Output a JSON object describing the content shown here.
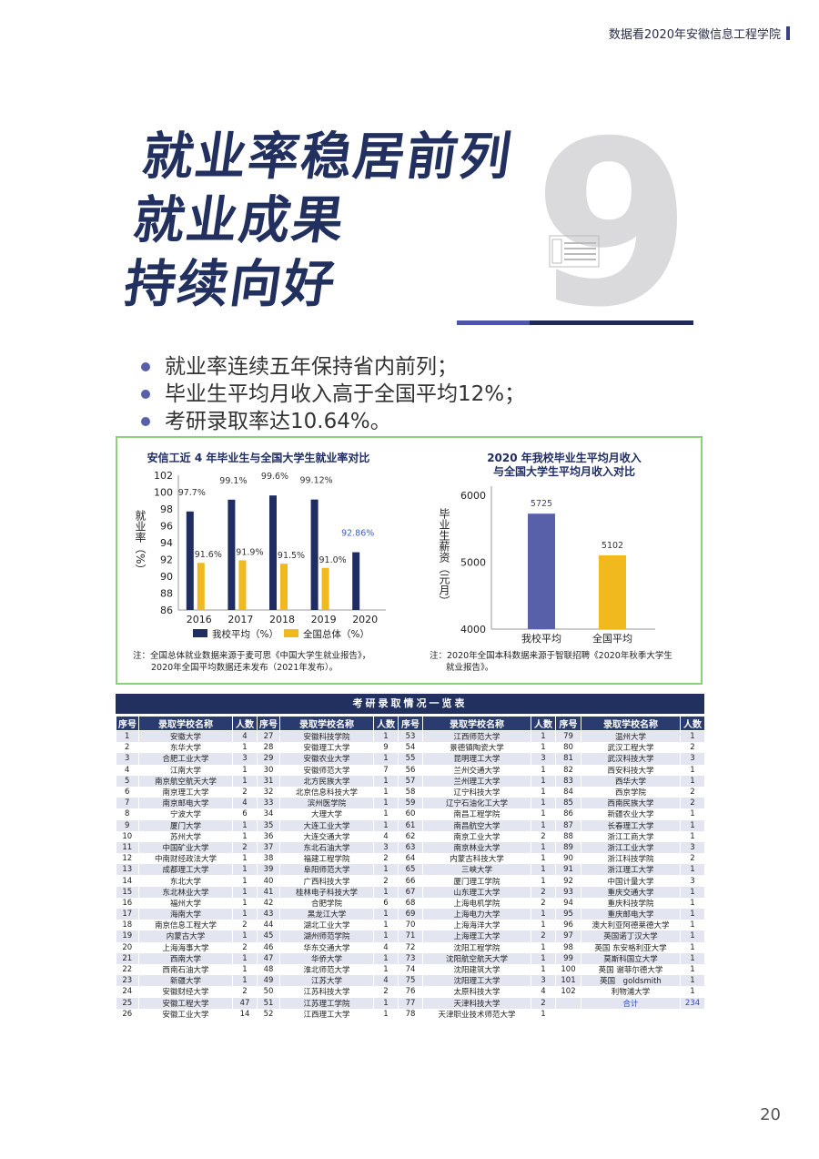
{
  "header": {
    "text": "数据看2020年安徽信息工程学院"
  },
  "big_number": "9",
  "title_lines": [
    "就业率稳居前列",
    "就业成果",
    "持续向好"
  ],
  "bullets": [
    "就业率连续五年保持省内前列；",
    "毕业生平均月收入高于全国平均12%；",
    "考研录取率达10.64%。"
  ],
  "chart_data": [
    {
      "type": "bar",
      "title": "安信工近 4 年毕业生与全国大学生就业率对比",
      "ylabel": "就业率（%）",
      "ylim": [
        86,
        102
      ],
      "yticks": [
        "102",
        "100",
        "98",
        "96",
        "94",
        "92",
        "90",
        "88",
        "86"
      ],
      "categories": [
        "2016",
        "2017",
        "2018",
        "2019",
        "2020"
      ],
      "series": [
        {
          "name": "我校平均（%）",
          "color": "#1f2d63",
          "values": [
            97.7,
            99.1,
            99.6,
            99.12,
            92.86
          ],
          "labels": [
            "97.7%",
            "99.1%",
            "99.6%",
            "99.12%",
            "92.86%"
          ]
        },
        {
          "name": "全国总体（%）",
          "color": "#f0b91d",
          "values": [
            91.6,
            91.9,
            91.5,
            91.0,
            null
          ],
          "labels": [
            "91.6%",
            "91.9%",
            "91.5%",
            "91.0%",
            ""
          ]
        }
      ],
      "note": [
        "注：全国总体就业数据来源于麦可思《中国大学生就业报告》，",
        "2020年全国平均数据还未发布（2021年发布）。"
      ]
    },
    {
      "type": "bar",
      "title": [
        "2020 年我校毕业生平均月收入",
        "与全国大学生平均月收入对比"
      ],
      "ylabel": "毕业生薪资（元月）",
      "ylim": [
        4000,
        6000
      ],
      "yticks": [
        "6000",
        "5000",
        "4000"
      ],
      "categories": [
        "我校平均",
        "全国平均"
      ],
      "values": [
        5725,
        5102
      ],
      "labels": [
        "5725",
        "5102"
      ],
      "colors": [
        "#5760a8",
        "#f0b91d"
      ],
      "note": [
        "注：2020年全国本科数据来源于智联招聘《2020年秋季大学生",
        "就业报告》。"
      ]
    }
  ],
  "table": {
    "title": "考研录取情况一览表",
    "headers": [
      "序号",
      "录取学校名称",
      "人数",
      "序号",
      "录取学校名称",
      "人数",
      "序号",
      "录取学校名称",
      "人数",
      "序号",
      "录取学校名称",
      "人数"
    ],
    "rows": [
      [
        "1",
        "安徽大学",
        "4",
        "27",
        "安徽科技学院",
        "1",
        "53",
        "江西师范大学",
        "1",
        "79",
        "温州大学",
        "1"
      ],
      [
        "2",
        "东华大学",
        "1",
        "28",
        "安徽理工大学",
        "9",
        "54",
        "景德镇陶瓷大学",
        "1",
        "80",
        "武汉工程大学",
        "2"
      ],
      [
        "3",
        "合肥工业大学",
        "3",
        "29",
        "安徽农业大学",
        "1",
        "55",
        "昆明理工大学",
        "3",
        "81",
        "武汉科技大学",
        "3"
      ],
      [
        "4",
        "江南大学",
        "1",
        "30",
        "安徽师范大学",
        "7",
        "56",
        "兰州交通大学",
        "1",
        "82",
        "西安科技大学",
        "1"
      ],
      [
        "5",
        "南京航空航天大学",
        "1",
        "31",
        "北方民族大学",
        "1",
        "57",
        "兰州理工大学",
        "1",
        "83",
        "西华大学",
        "1"
      ],
      [
        "6",
        "南京理工大学",
        "2",
        "32",
        "北京信息科技大学",
        "1",
        "58",
        "辽宁科技大学",
        "1",
        "84",
        "西京学院",
        "2"
      ],
      [
        "7",
        "南京邮电大学",
        "4",
        "33",
        "滨州医学院",
        "1",
        "59",
        "辽宁石油化工大学",
        "1",
        "85",
        "西南民族大学",
        "2"
      ],
      [
        "8",
        "宁波大学",
        "6",
        "34",
        "大理大学",
        "1",
        "60",
        "南昌工程学院",
        "1",
        "86",
        "新疆农业大学",
        "1"
      ],
      [
        "9",
        "厦门大学",
        "1",
        "35",
        "大连工业大学",
        "1",
        "61",
        "南昌航空大学",
        "1",
        "87",
        "长春理工大学",
        "1"
      ],
      [
        "10",
        "苏州大学",
        "1",
        "36",
        "大连交通大学",
        "4",
        "62",
        "南京工业大学",
        "2",
        "88",
        "浙江工商大学",
        "1"
      ],
      [
        "11",
        "中国矿业大学",
        "2",
        "37",
        "东北石油大学",
        "3",
        "63",
        "南京林业大学",
        "1",
        "89",
        "浙江工业大学",
        "3"
      ],
      [
        "12",
        "中南财经政法大学",
        "1",
        "38",
        "福建工程学院",
        "2",
        "64",
        "内蒙古科技大学",
        "1",
        "90",
        "浙江科技学院",
        "2"
      ],
      [
        "13",
        "成都理工大学",
        "1",
        "39",
        "阜阳师范大学",
        "1",
        "65",
        "三峡大学",
        "1",
        "91",
        "浙江理工大学",
        "1"
      ],
      [
        "14",
        "东北大学",
        "1",
        "40",
        "广西科技大学",
        "2",
        "66",
        "厦门理工学院",
        "1",
        "92",
        "中国计量大学",
        "3"
      ],
      [
        "15",
        "东北林业大学",
        "1",
        "41",
        "桂林电子科技大学",
        "1",
        "67",
        "山东理工大学",
        "2",
        "93",
        "重庆交通大学",
        "1"
      ],
      [
        "16",
        "福州大学",
        "1",
        "42",
        "合肥学院",
        "6",
        "68",
        "上海电机学院",
        "2",
        "94",
        "重庆科技学院",
        "1"
      ],
      [
        "17",
        "海南大学",
        "1",
        "43",
        "黑龙江大学",
        "1",
        "69",
        "上海电力大学",
        "1",
        "95",
        "重庆邮电大学",
        "1"
      ],
      [
        "18",
        "南京信息工程大学",
        "2",
        "44",
        "湖北工业大学",
        "1",
        "70",
        "上海海洋大学",
        "1",
        "96",
        "澳大利亚阿德莱德大学",
        "1"
      ],
      [
        "19",
        "内蒙古大学",
        "1",
        "45",
        "湖州师范学院",
        "1",
        "71",
        "上海理工大学",
        "2",
        "97",
        "英国诺丁汉大学",
        "1"
      ],
      [
        "20",
        "上海海事大学",
        "2",
        "46",
        "华东交通大学",
        "4",
        "72",
        "沈阳工程学院",
        "1",
        "98",
        "英国 东安格利亚大学",
        "1"
      ],
      [
        "21",
        "西南大学",
        "1",
        "47",
        "华侨大学",
        "1",
        "73",
        "沈阳航空航天大学",
        "1",
        "99",
        "莫斯科国立大学",
        "1"
      ],
      [
        "22",
        "西南石油大学",
        "1",
        "48",
        "淮北师范大学",
        "1",
        "74",
        "沈阳建筑大学",
        "1",
        "100",
        "英国 谢菲尔德大学",
        "1"
      ],
      [
        "23",
        "新疆大学",
        "1",
        "49",
        "江苏大学",
        "4",
        "75",
        "沈阳理工大学",
        "3",
        "101",
        "英国　goldsmith",
        "1"
      ],
      [
        "24",
        "安徽财经大学",
        "2",
        "50",
        "江苏科技大学",
        "2",
        "76",
        "太原科技大学",
        "4",
        "102",
        "利物浦大学",
        "1"
      ],
      [
        "25",
        "安徽工程大学",
        "47",
        "51",
        "江苏理工学院",
        "1",
        "77",
        "天津科技大学",
        "2",
        "",
        "合计",
        "234"
      ],
      [
        "26",
        "安徽工业大学",
        "14",
        "52",
        "江西理工大学",
        "1",
        "78",
        "天津职业技术师范大学",
        "1",
        "",
        "",
        ""
      ]
    ]
  },
  "page_number": "20"
}
